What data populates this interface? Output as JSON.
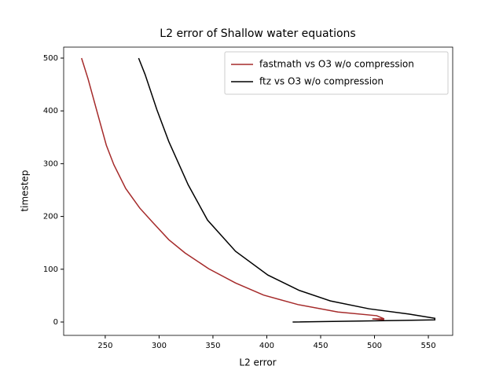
{
  "chart_data": {
    "type": "line",
    "title": "L2 error of Shallow water equations",
    "xlabel": "L2 error",
    "ylabel": "timestep",
    "xlim": [
      211.4,
      572.6
    ],
    "ylim": [
      -25.3,
      520.8
    ],
    "xticks": [
      250,
      300,
      350,
      400,
      450,
      500,
      550
    ],
    "yticks": [
      0,
      100,
      200,
      300,
      400,
      500
    ],
    "legend": "upper right",
    "series": [
      {
        "name": "fastmath vs O3 w/o compression",
        "color": "#a52a2a",
        "x": [
          228,
          234,
          243,
          251,
          258,
          269,
          282,
          294,
          309,
          324,
          346,
          371,
          397,
          429,
          466,
          502,
          509,
          498,
          509
        ],
        "values": [
          500,
          461,
          394,
          335,
          298,
          253,
          216,
          189,
          156,
          131,
          101,
          74,
          51,
          33,
          19,
          12,
          6,
          6,
          4
        ]
      },
      {
        "name": "ftz vs O3 w/o compression",
        "color": "#000000",
        "x": [
          281,
          287,
          298,
          309,
          327,
          345,
          371,
          401,
          430,
          459,
          495,
          532,
          556,
          556,
          424
        ],
        "values": [
          500,
          469,
          402,
          342,
          260,
          193,
          134,
          89,
          60,
          40,
          25,
          15,
          7,
          4,
          0
        ]
      }
    ]
  }
}
